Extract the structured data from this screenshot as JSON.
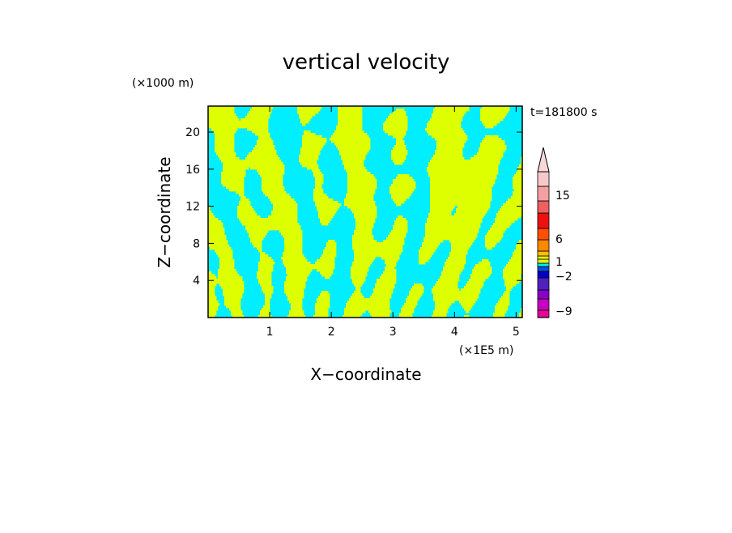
{
  "chart_data": {
    "type": "heatmap",
    "title": "vertical velocity",
    "xlabel": "X−coordinate",
    "ylabel": "Z−coordinate",
    "x_unit": "(×1E5 m)",
    "y_unit": "(×1000 m)",
    "time_label": "t=181800 s",
    "xlim": [
      0,
      5.1
    ],
    "ylim": [
      0,
      22.8
    ],
    "x_ticks": [
      "1",
      "2",
      "3",
      "4",
      "5"
    ],
    "y_ticks": [
      "4",
      "8",
      "12",
      "16",
      "20"
    ],
    "field_colors": [
      "#00eeff",
      "#ddff00"
    ],
    "colorbar": {
      "labels": [
        "15",
        "6",
        "1",
        "−2",
        "−9"
      ],
      "colors_bottom_to_top": [
        "#e8009a",
        "#c800c0",
        "#8800c8",
        "#5020c0",
        "#0000c8",
        "#0050e0",
        "#00eeff",
        "#ddff00",
        "#ffee00",
        "#ffc000",
        "#ff8800",
        "#ff5000",
        "#ee1010",
        "#f06060",
        "#f4a0a0",
        "#f8c8c8"
      ],
      "extend_max": true
    }
  }
}
